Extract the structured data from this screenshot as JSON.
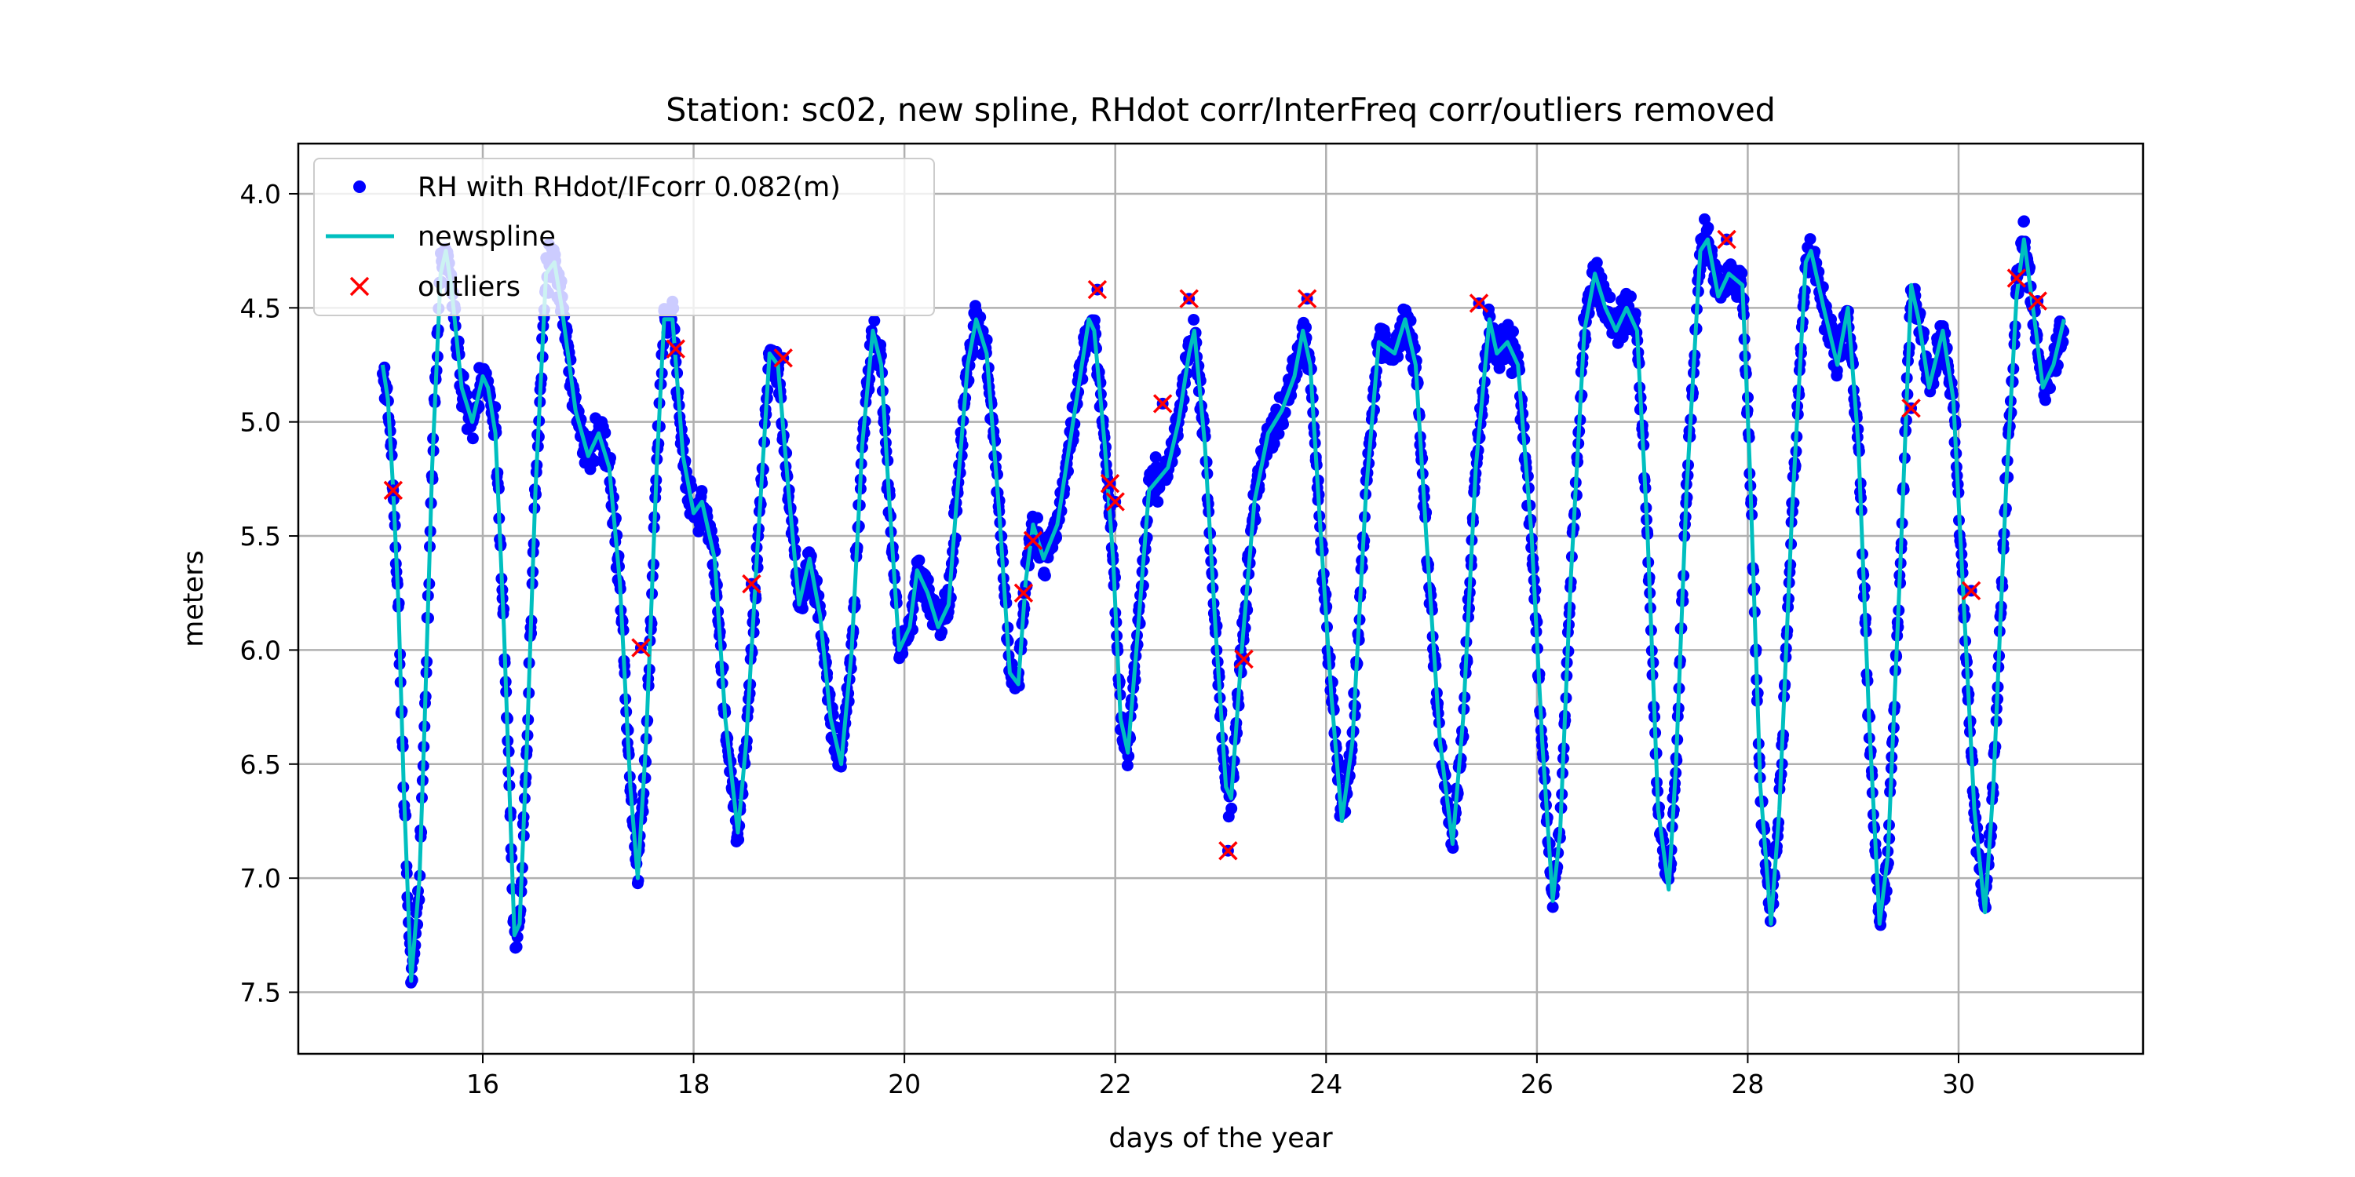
{
  "chart_data": {
    "type": "scatter",
    "title": "Station: sc02, new spline, RHdot corr/InterFreq corr/outliers removed",
    "xlabel": "days of the year",
    "ylabel": "meters",
    "xlim": [
      14.25,
      31.75
    ],
    "ylim": [
      7.77,
      3.78
    ],
    "y_inverted": true,
    "xticks": [
      16,
      18,
      20,
      22,
      24,
      26,
      28,
      30
    ],
    "yticks": [
      4.0,
      4.5,
      5.0,
      5.5,
      6.0,
      6.5,
      7.0,
      7.5
    ],
    "xtick_labels": [
      "16",
      "18",
      "20",
      "22",
      "24",
      "26",
      "28",
      "30"
    ],
    "ytick_labels": [
      "4.0",
      "4.5",
      "5.0",
      "5.5",
      "6.0",
      "6.5",
      "7.0",
      "7.5"
    ],
    "grid": true,
    "legend_position": "upper-left",
    "series": [
      {
        "name": "RH with RHdot/IFcorr 0.082(m)",
        "kind": "scatter",
        "color": "#0000ff",
        "note": "dense observations scattered closely around the spline",
        "x_range": [
          15.05,
          31.0
        ]
      },
      {
        "name": "newspline",
        "kind": "line",
        "color": "#00bfbf",
        "points": [
          [
            15.05,
            4.75
          ],
          [
            15.1,
            4.9
          ],
          [
            15.15,
            5.3
          ],
          [
            15.2,
            5.8
          ],
          [
            15.25,
            6.6
          ],
          [
            15.32,
            7.45
          ],
          [
            15.4,
            7.0
          ],
          [
            15.45,
            6.3
          ],
          [
            15.52,
            5.2
          ],
          [
            15.6,
            4.35
          ],
          [
            15.65,
            4.25
          ],
          [
            15.7,
            4.4
          ],
          [
            15.8,
            4.85
          ],
          [
            15.9,
            5.0
          ],
          [
            16.0,
            4.8
          ],
          [
            16.05,
            4.85
          ],
          [
            16.12,
            5.05
          ],
          [
            16.2,
            5.9
          ],
          [
            16.3,
            7.25
          ],
          [
            16.35,
            7.2
          ],
          [
            16.42,
            6.4
          ],
          [
            16.5,
            5.3
          ],
          [
            16.6,
            4.35
          ],
          [
            16.68,
            4.3
          ],
          [
            16.75,
            4.5
          ],
          [
            16.88,
            4.95
          ],
          [
            17.0,
            5.15
          ],
          [
            17.1,
            5.05
          ],
          [
            17.2,
            5.2
          ],
          [
            17.3,
            5.7
          ],
          [
            17.4,
            6.6
          ],
          [
            17.47,
            7.0
          ],
          [
            17.55,
            6.4
          ],
          [
            17.65,
            5.2
          ],
          [
            17.72,
            4.55
          ],
          [
            17.8,
            4.55
          ],
          [
            17.9,
            5.15
          ],
          [
            18.0,
            5.4
          ],
          [
            18.08,
            5.35
          ],
          [
            18.2,
            5.6
          ],
          [
            18.3,
            6.3
          ],
          [
            18.42,
            6.8
          ],
          [
            18.5,
            6.4
          ],
          [
            18.6,
            5.6
          ],
          [
            18.72,
            4.7
          ],
          [
            18.8,
            4.75
          ],
          [
            18.9,
            5.3
          ],
          [
            19.0,
            5.8
          ],
          [
            19.1,
            5.6
          ],
          [
            19.2,
            5.85
          ],
          [
            19.3,
            6.3
          ],
          [
            19.4,
            6.5
          ],
          [
            19.5,
            6.0
          ],
          [
            19.6,
            5.1
          ],
          [
            19.7,
            4.6
          ],
          [
            19.78,
            4.75
          ],
          [
            19.85,
            5.3
          ],
          [
            19.95,
            6.0
          ],
          [
            20.05,
            5.9
          ],
          [
            20.12,
            5.65
          ],
          [
            20.22,
            5.75
          ],
          [
            20.32,
            5.9
          ],
          [
            20.42,
            5.8
          ],
          [
            20.52,
            5.2
          ],
          [
            20.6,
            4.75
          ],
          [
            20.68,
            4.55
          ],
          [
            20.78,
            4.7
          ],
          [
            20.9,
            5.4
          ],
          [
            21.0,
            6.1
          ],
          [
            21.08,
            6.15
          ],
          [
            21.15,
            5.7
          ],
          [
            21.22,
            5.45
          ],
          [
            21.32,
            5.6
          ],
          [
            21.45,
            5.45
          ],
          [
            21.55,
            5.15
          ],
          [
            21.65,
            4.85
          ],
          [
            21.75,
            4.55
          ],
          [
            21.8,
            4.6
          ],
          [
            21.9,
            5.1
          ],
          [
            21.98,
            5.6
          ],
          [
            22.05,
            6.3
          ],
          [
            22.12,
            6.45
          ],
          [
            22.2,
            6.0
          ],
          [
            22.32,
            5.3
          ],
          [
            22.5,
            5.2
          ],
          [
            22.6,
            5.0
          ],
          [
            22.7,
            4.7
          ],
          [
            22.75,
            4.6
          ],
          [
            22.85,
            5.1
          ],
          [
            22.95,
            5.9
          ],
          [
            23.05,
            6.6
          ],
          [
            23.1,
            6.65
          ],
          [
            23.2,
            6.0
          ],
          [
            23.32,
            5.35
          ],
          [
            23.45,
            5.05
          ],
          [
            23.58,
            4.95
          ],
          [
            23.7,
            4.8
          ],
          [
            23.78,
            4.6
          ],
          [
            23.85,
            4.75
          ],
          [
            23.95,
            5.5
          ],
          [
            24.05,
            6.2
          ],
          [
            24.15,
            6.75
          ],
          [
            24.25,
            6.4
          ],
          [
            24.38,
            5.3
          ],
          [
            24.5,
            4.65
          ],
          [
            24.65,
            4.7
          ],
          [
            24.75,
            4.55
          ],
          [
            24.85,
            4.75
          ],
          [
            24.95,
            5.5
          ],
          [
            25.08,
            6.4
          ],
          [
            25.2,
            6.85
          ],
          [
            25.3,
            6.3
          ],
          [
            25.42,
            5.2
          ],
          [
            25.55,
            4.55
          ],
          [
            25.62,
            4.7
          ],
          [
            25.72,
            4.65
          ],
          [
            25.82,
            4.75
          ],
          [
            25.95,
            5.5
          ],
          [
            26.05,
            6.4
          ],
          [
            26.15,
            7.1
          ],
          [
            26.22,
            6.8
          ],
          [
            26.32,
            5.7
          ],
          [
            26.45,
            4.6
          ],
          [
            26.55,
            4.35
          ],
          [
            26.65,
            4.5
          ],
          [
            26.75,
            4.6
          ],
          [
            26.85,
            4.5
          ],
          [
            26.95,
            4.6
          ],
          [
            27.05,
            5.5
          ],
          [
            27.15,
            6.7
          ],
          [
            27.25,
            7.05
          ],
          [
            27.32,
            6.5
          ],
          [
            27.42,
            5.3
          ],
          [
            27.55,
            4.25
          ],
          [
            27.62,
            4.2
          ],
          [
            27.72,
            4.45
          ],
          [
            27.82,
            4.35
          ],
          [
            27.95,
            4.4
          ],
          [
            28.02,
            5.2
          ],
          [
            28.12,
            6.6
          ],
          [
            28.22,
            7.2
          ],
          [
            28.3,
            6.7
          ],
          [
            28.42,
            5.4
          ],
          [
            28.55,
            4.3
          ],
          [
            28.6,
            4.25
          ],
          [
            28.72,
            4.5
          ],
          [
            28.85,
            4.75
          ],
          [
            28.95,
            4.5
          ],
          [
            29.05,
            5.1
          ],
          [
            29.15,
            6.3
          ],
          [
            29.25,
            7.2
          ],
          [
            29.33,
            6.9
          ],
          [
            29.45,
            5.6
          ],
          [
            29.55,
            4.4
          ],
          [
            29.62,
            4.55
          ],
          [
            29.72,
            4.85
          ],
          [
            29.85,
            4.6
          ],
          [
            29.95,
            4.9
          ],
          [
            30.05,
            5.8
          ],
          [
            30.15,
            6.7
          ],
          [
            30.25,
            7.15
          ],
          [
            30.33,
            6.6
          ],
          [
            30.45,
            5.3
          ],
          [
            30.55,
            4.45
          ],
          [
            30.62,
            4.2
          ],
          [
            30.72,
            4.55
          ],
          [
            30.8,
            4.85
          ],
          [
            30.9,
            4.75
          ],
          [
            31.0,
            4.55
          ]
        ]
      },
      {
        "name": "outliers",
        "kind": "scatter",
        "marker": "x",
        "color": "#ff0000",
        "points": [
          [
            15.15,
            5.3
          ],
          [
            17.5,
            5.99
          ],
          [
            17.83,
            4.68
          ],
          [
            18.55,
            5.71
          ],
          [
            18.85,
            4.72
          ],
          [
            21.13,
            5.75
          ],
          [
            21.22,
            5.52
          ],
          [
            21.83,
            4.42
          ],
          [
            21.95,
            5.27
          ],
          [
            22.0,
            5.35
          ],
          [
            22.45,
            4.92
          ],
          [
            22.7,
            4.46
          ],
          [
            23.07,
            6.88
          ],
          [
            23.22,
            6.04
          ],
          [
            23.82,
            4.46
          ],
          [
            25.45,
            4.48
          ],
          [
            27.8,
            4.2
          ],
          [
            29.55,
            4.94
          ],
          [
            30.12,
            5.74
          ],
          [
            30.55,
            4.37
          ],
          [
            30.75,
            4.47
          ]
        ]
      }
    ]
  }
}
